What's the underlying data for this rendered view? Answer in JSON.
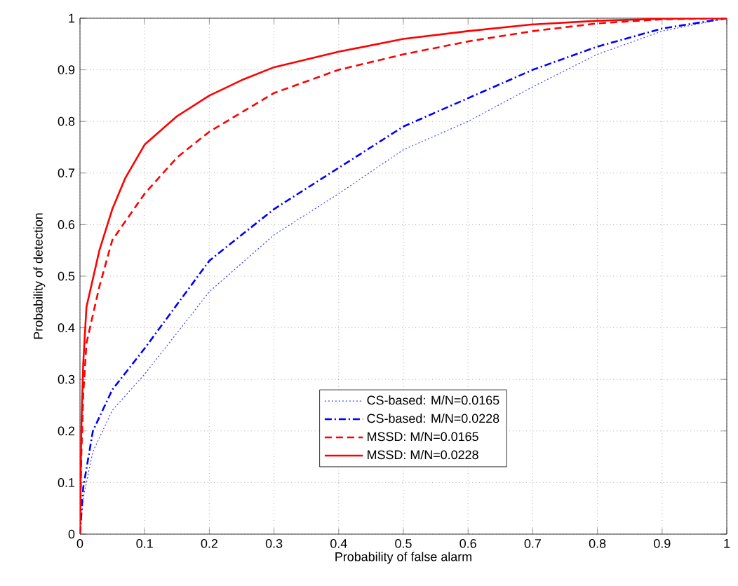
{
  "chart_data": {
    "type": "line",
    "xlabel": "Probability of false alarm",
    "ylabel": "Probability of detection",
    "xlim": [
      0,
      1
    ],
    "ylim": [
      0,
      1
    ],
    "xticks": [
      0,
      0.1,
      0.2,
      0.3,
      0.4,
      0.5,
      0.6,
      0.7,
      0.8,
      0.9,
      1
    ],
    "yticks": [
      0,
      0.1,
      0.2,
      0.3,
      0.4,
      0.5,
      0.6,
      0.7,
      0.8,
      0.9,
      1
    ],
    "grid": true,
    "legend": "bottom right",
    "marker": "none",
    "series": [
      {
        "name": "CS-based: M/N=0.0165",
        "color": "#4040ff",
        "line_style": "dotted",
        "x": [
          0,
          0.005,
          0.02,
          0.05,
          0.1,
          0.2,
          0.3,
          0.4,
          0.5,
          0.6,
          0.7,
          0.8,
          0.9,
          1
        ],
        "values": [
          0,
          0.07,
          0.16,
          0.24,
          0.31,
          0.47,
          0.58,
          0.66,
          0.745,
          0.8,
          0.867,
          0.93,
          0.975,
          1
        ]
      },
      {
        "name": "CS-based: M/N=0.0228",
        "color": "#0000ff",
        "line_style": "dashdot",
        "x": [
          0,
          0.005,
          0.02,
          0.05,
          0.1,
          0.2,
          0.3,
          0.4,
          0.5,
          0.6,
          0.7,
          0.8,
          0.9,
          1
        ],
        "values": [
          0,
          0.09,
          0.2,
          0.28,
          0.36,
          0.53,
          0.63,
          0.71,
          0.79,
          0.845,
          0.9,
          0.945,
          0.98,
          1
        ]
      },
      {
        "name": "MSSD:     M/N=0.0165",
        "color": "#ff0000",
        "line_style": "dashed",
        "x": [
          0,
          0.002,
          0.005,
          0.01,
          0.03,
          0.05,
          0.1,
          0.15,
          0.2,
          0.3,
          0.4,
          0.5,
          0.6,
          0.7,
          0.8,
          0.9,
          1
        ],
        "values": [
          0,
          0.15,
          0.27,
          0.37,
          0.48,
          0.57,
          0.66,
          0.73,
          0.78,
          0.855,
          0.9,
          0.93,
          0.955,
          0.975,
          0.99,
          0.998,
          1
        ]
      },
      {
        "name": "MSSD:     M/N=0.0228",
        "color": "#ff0000",
        "line_style": "solid",
        "x": [
          0,
          0.002,
          0.005,
          0.01,
          0.03,
          0.05,
          0.07,
          0.1,
          0.15,
          0.2,
          0.25,
          0.3,
          0.4,
          0.5,
          0.6,
          0.7,
          0.8,
          0.9,
          1
        ],
        "values": [
          0,
          0.2,
          0.33,
          0.44,
          0.55,
          0.63,
          0.69,
          0.755,
          0.81,
          0.85,
          0.88,
          0.905,
          0.935,
          0.96,
          0.975,
          0.988,
          0.995,
          0.999,
          1
        ]
      }
    ]
  }
}
